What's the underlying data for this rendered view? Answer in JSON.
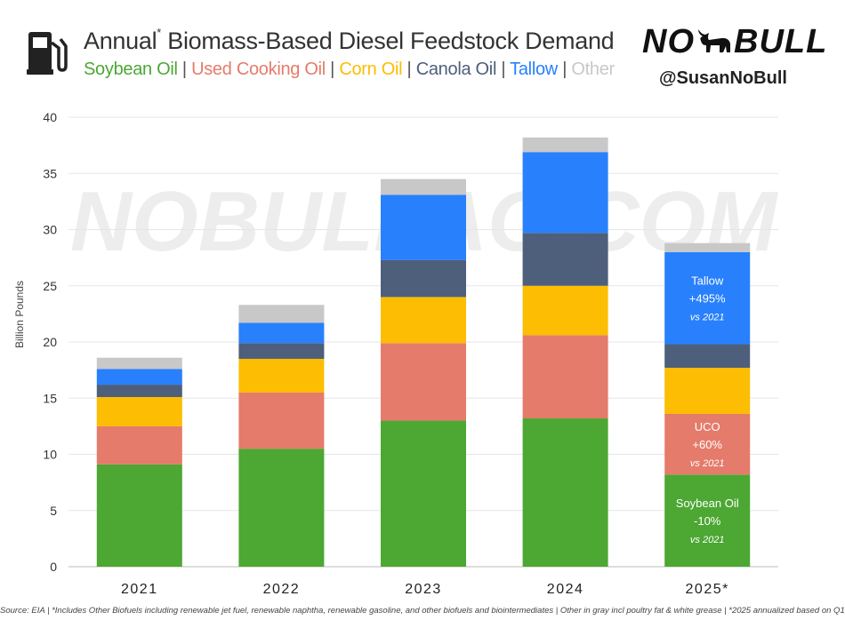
{
  "header": {
    "title": "Annual",
    "title_sup": "*",
    "title_rest": "Biomass-Based Diesel Feedstock Demand",
    "legend": [
      {
        "label": "Soybean Oil",
        "color": "#4ca733"
      },
      {
        "label": "Used Cooking Oil",
        "color": "#e57b6b"
      },
      {
        "label": "Corn Oil",
        "color": "#fcbd02"
      },
      {
        "label": "Canola Oil",
        "color": "#4d5f7a"
      },
      {
        "label": "Tallow",
        "color": "#2880fd"
      },
      {
        "label": "Other",
        "color": "#c8c8c8"
      }
    ],
    "separator": "|"
  },
  "brand": {
    "logo_left": "NO",
    "logo_right": "BULL",
    "handle": "@SusanNoBull",
    "watermark": "NOBULLAG.COM"
  },
  "chart_data": {
    "type": "bar",
    "stacked": true,
    "categories": [
      "2021",
      "2022",
      "2023",
      "2024",
      "2025*"
    ],
    "ylabel": "Billion Pounds",
    "ylim": [
      0,
      40
    ],
    "yticks": [
      0,
      5,
      10,
      15,
      20,
      25,
      30,
      35,
      40
    ],
    "grid": true,
    "series": [
      {
        "name": "Soybean Oil",
        "color": "#4ca733",
        "values": [
          9.1,
          10.5,
          13.0,
          13.2,
          8.2
        ]
      },
      {
        "name": "Used Cooking Oil",
        "color": "#e57b6b",
        "values": [
          3.4,
          5.0,
          6.9,
          7.4,
          5.4
        ]
      },
      {
        "name": "Corn Oil",
        "color": "#fcbd02",
        "values": [
          2.6,
          3.0,
          4.1,
          4.4,
          4.1
        ]
      },
      {
        "name": "Canola Oil",
        "color": "#4d5f7a",
        "values": [
          1.1,
          1.4,
          3.3,
          4.7,
          2.1
        ]
      },
      {
        "name": "Tallow",
        "color": "#2880fd",
        "values": [
          1.4,
          1.8,
          5.8,
          7.2,
          8.2
        ]
      },
      {
        "name": "Other",
        "color": "#c8c8c8",
        "values": [
          1.0,
          1.6,
          1.4,
          1.3,
          0.8
        ]
      }
    ],
    "annotations": [
      {
        "category": "2025*",
        "series": "Tallow",
        "label": "Tallow",
        "change": "+495%",
        "note": "vs 2021"
      },
      {
        "category": "2025*",
        "series": "Used Cooking Oil",
        "label": "UCO",
        "change": "+60%",
        "note": "vs 2021"
      },
      {
        "category": "2025*",
        "series": "Soybean Oil",
        "label": "Soybean Oil",
        "change": "-10%",
        "note": "vs 2021"
      }
    ]
  },
  "footer": {
    "note": "Source: EIA | *Includes Other Biofuels including renewable jet fuel, renewable naphtha, renewable gasoline, and other biofuels and biointermediates | Other in gray incl poultry fat & white grease | *2025 annualized based on Q1"
  }
}
